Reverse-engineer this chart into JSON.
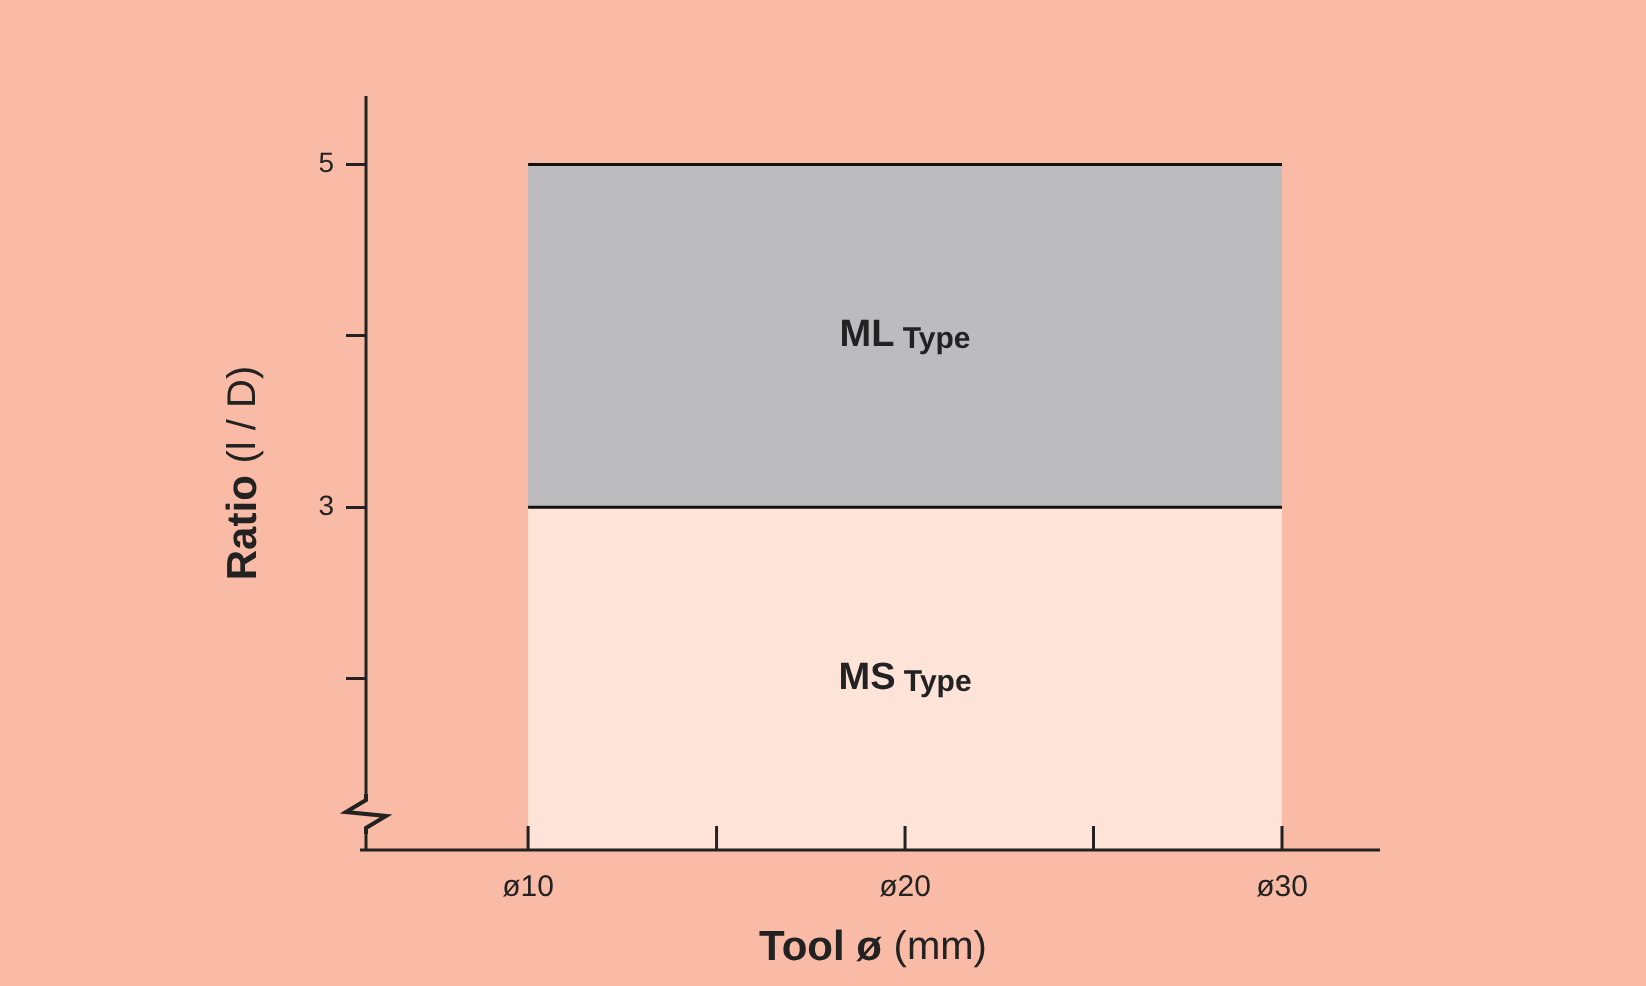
{
  "chart_data": {
    "type": "area",
    "xlabel": "Tool ø (mm)",
    "ylabel": "Ratio (l / D)",
    "categories": [
      "ø10",
      "ø20",
      "ø30"
    ],
    "series": [
      {
        "name": "MS Type",
        "color": "#fde3d8",
        "values": [
          3,
          3,
          3
        ]
      },
      {
        "name": "ML Type",
        "color": "#bcbcbe",
        "values": [
          5,
          5,
          5
        ]
      }
    ],
    "ylim": [
      1,
      5.4
    ],
    "yticks": [
      3,
      5
    ],
    "grid": false,
    "legend": false
  }
}
